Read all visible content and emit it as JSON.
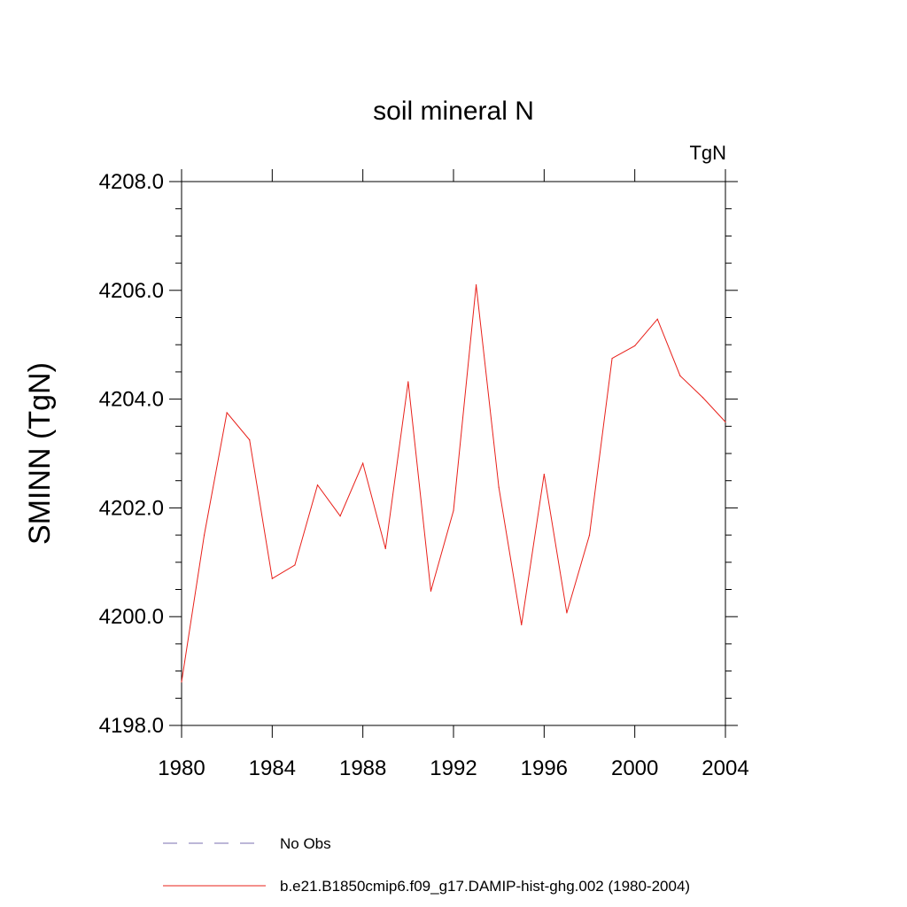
{
  "chart_data": {
    "type": "line",
    "title": "soil mineral N",
    "units": "TgN",
    "ylabel": "SMINN  (TgN)",
    "xlabel": "",
    "xlim": [
      1980,
      2004
    ],
    "ylim": [
      4198.0,
      4208.0
    ],
    "x_ticks": [
      1980,
      1984,
      1988,
      1992,
      1996,
      2000,
      2004
    ],
    "y_ticks": [
      "4198.0",
      "4200.0",
      "4202.0",
      "4204.0",
      "4206.0",
      "4208.0"
    ],
    "y_tick_values": [
      4198.0,
      4200.0,
      4202.0,
      4204.0,
      4206.0,
      4208.0
    ],
    "series": [
      {
        "name": "b.e21.B1850cmip6.f09_g17.DAMIP-hist-ghg.002 (1980-2004)",
        "color": "#e8201a",
        "x": [
          1980,
          1981,
          1982,
          1983,
          1984,
          1985,
          1986,
          1987,
          1988,
          1989,
          1990,
          1991,
          1992,
          1993,
          1994,
          1995,
          1996,
          1997,
          1998,
          1999,
          2000,
          2001,
          2002,
          2003,
          2004
        ],
        "y": [
          4198.8,
          4201.5,
          4203.75,
          4203.25,
          4200.7,
          4200.95,
          4202.42,
          4201.85,
          4202.82,
          4201.25,
          4204.32,
          4200.47,
          4201.95,
          4206.1,
          4202.38,
          4199.85,
          4202.62,
          4200.07,
          4201.5,
          4204.75,
          4204.98,
          4205.47,
          4204.43,
          4204.03,
          4203.58
        ]
      }
    ],
    "legend": [
      {
        "label": "No Obs",
        "style": "dashed",
        "color": "#7a6fb0"
      },
      {
        "label": "b.e21.B1850cmip6.f09_g17.DAMIP-hist-ghg.002 (1980-2004)",
        "style": "solid",
        "color": "#e8201a"
      }
    ],
    "legend_position": "bottom",
    "grid": false
  }
}
